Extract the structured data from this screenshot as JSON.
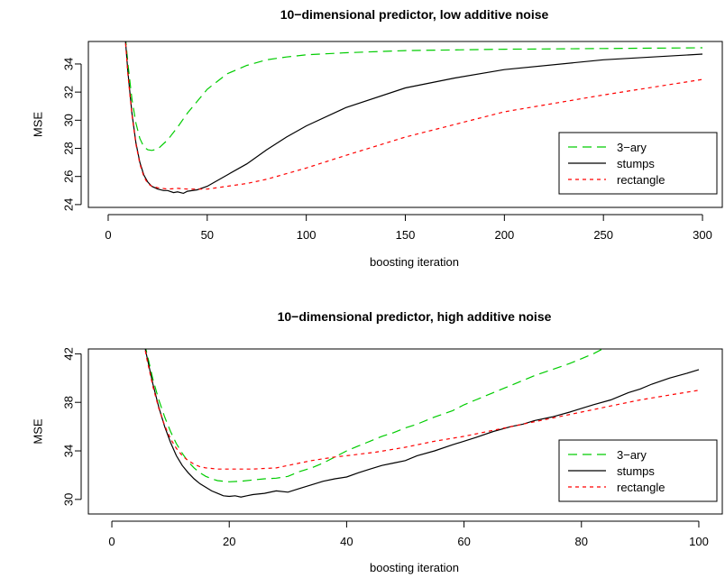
{
  "chart_data": [
    {
      "type": "line",
      "title": "10−dimensional predictor, low additive noise",
      "xlabel": "boosting iteration",
      "ylabel": "MSE",
      "xlim": [
        -10,
        310
      ],
      "ylim": [
        23.8,
        35.6
      ],
      "xticks": [
        0,
        50,
        100,
        150,
        200,
        250,
        300
      ],
      "yticks": [
        24,
        26,
        28,
        30,
        32,
        34
      ],
      "grid": false,
      "legend_position": "right",
      "series": [
        {
          "name": "3−ary",
          "color": "#00cc00",
          "dash": "10,6",
          "x": [
            8,
            10,
            12,
            14,
            16,
            18,
            20,
            22,
            25,
            30,
            35,
            40,
            50,
            60,
            70,
            80,
            90,
            100,
            120,
            150,
            200,
            250,
            300
          ],
          "y": [
            37,
            34.0,
            31.5,
            29.8,
            28.7,
            28.1,
            27.9,
            27.85,
            27.95,
            28.6,
            29.5,
            30.5,
            32.2,
            33.3,
            33.9,
            34.3,
            34.5,
            34.65,
            34.8,
            34.95,
            35.05,
            35.1,
            35.15
          ]
        },
        {
          "name": "stumps",
          "color": "#000000",
          "dash": "",
          "x": [
            8,
            10,
            12,
            14,
            16,
            18,
            20,
            22,
            25,
            28,
            30,
            33,
            35,
            38,
            40,
            45,
            50,
            60,
            70,
            80,
            90,
            100,
            120,
            150,
            175,
            200,
            250,
            300
          ],
          "y": [
            37,
            33.4,
            30.5,
            28.4,
            27.0,
            26.1,
            25.6,
            25.3,
            25.1,
            25.0,
            25.0,
            24.85,
            24.9,
            24.8,
            24.95,
            25.05,
            25.3,
            26.1,
            26.9,
            27.9,
            28.8,
            29.6,
            30.9,
            32.3,
            33.0,
            33.6,
            34.3,
            34.7
          ]
        },
        {
          "name": "rectangle",
          "color": "#ff0000",
          "dash": "4,4",
          "x": [
            8,
            10,
            12,
            14,
            16,
            18,
            20,
            22,
            25,
            30,
            35,
            40,
            50,
            60,
            70,
            80,
            90,
            100,
            120,
            150,
            200,
            250,
            300
          ],
          "y": [
            37,
            33.2,
            30.4,
            28.3,
            26.9,
            26.0,
            25.5,
            25.3,
            25.2,
            25.1,
            25.15,
            25.1,
            25.1,
            25.3,
            25.5,
            25.8,
            26.2,
            26.6,
            27.5,
            28.8,
            30.6,
            31.8,
            32.9
          ]
        }
      ]
    },
    {
      "type": "line",
      "title": "10−dimensional predictor, high additive noise",
      "xlabel": "boosting iteration",
      "ylabel": "MSE",
      "xlim": [
        -4,
        104
      ],
      "ylim": [
        28.8,
        42.4
      ],
      "xticks": [
        0,
        20,
        40,
        60,
        80,
        100
      ],
      "yticks": [
        30,
        34,
        38,
        42
      ],
      "grid": false,
      "legend_position": "right",
      "series": [
        {
          "name": "3−ary",
          "color": "#00cc00",
          "dash": "10,6",
          "x": [
            5,
            6,
            7,
            8,
            9,
            10,
            11,
            12,
            13,
            14,
            15,
            16,
            17,
            18,
            19,
            20,
            22,
            24,
            26,
            28,
            30,
            32,
            34,
            36,
            38,
            40,
            42,
            44,
            46,
            48,
            50,
            52,
            55,
            58,
            60,
            62,
            65,
            68,
            70,
            72,
            75,
            78,
            80,
            82,
            84
          ],
          "y": [
            44,
            42.0,
            39.9,
            38.2,
            36.8,
            35.6,
            34.6,
            33.8,
            33.1,
            32.6,
            32.2,
            31.9,
            31.7,
            31.55,
            31.5,
            31.45,
            31.5,
            31.6,
            31.7,
            31.75,
            31.9,
            32.3,
            32.6,
            33.0,
            33.5,
            34.0,
            34.4,
            34.8,
            35.2,
            35.5,
            35.9,
            36.2,
            36.8,
            37.3,
            37.8,
            38.2,
            38.8,
            39.4,
            39.8,
            40.2,
            40.7,
            41.2,
            41.6,
            42.0,
            42.5
          ]
        },
        {
          "name": "stumps",
          "color": "#000000",
          "dash": "",
          "x": [
            5,
            6,
            7,
            8,
            9,
            10,
            11,
            12,
            13,
            14,
            15,
            16,
            17,
            18,
            19,
            20,
            21,
            22,
            23,
            24,
            26,
            28,
            30,
            32,
            34,
            36,
            38,
            40,
            42,
            44,
            46,
            48,
            50,
            52,
            55,
            58,
            60,
            62,
            65,
            68,
            70,
            72,
            75,
            78,
            80,
            82,
            85,
            88,
            90,
            92,
            95,
            98,
            100
          ],
          "y": [
            44,
            41.7,
            39.5,
            37.6,
            36.0,
            34.7,
            33.6,
            32.8,
            32.2,
            31.7,
            31.3,
            31.0,
            30.7,
            30.5,
            30.3,
            30.25,
            30.3,
            30.2,
            30.3,
            30.4,
            30.5,
            30.7,
            30.6,
            30.9,
            31.2,
            31.5,
            31.7,
            31.85,
            32.2,
            32.5,
            32.8,
            33.0,
            33.2,
            33.6,
            34.0,
            34.5,
            34.8,
            35.1,
            35.6,
            36.0,
            36.2,
            36.5,
            36.8,
            37.2,
            37.5,
            37.8,
            38.2,
            38.8,
            39.1,
            39.5,
            40.0,
            40.4,
            40.7
          ]
        },
        {
          "name": "rectangle",
          "color": "#ff0000",
          "dash": "4,4",
          "x": [
            5,
            6,
            7,
            8,
            9,
            10,
            11,
            12,
            13,
            14,
            15,
            16,
            17,
            18,
            19,
            20,
            22,
            24,
            26,
            28,
            30,
            32,
            34,
            36,
            38,
            40,
            45,
            50,
            55,
            60,
            65,
            70,
            75,
            80,
            85,
            90,
            95,
            100
          ],
          "y": [
            44,
            41.5,
            39.3,
            37.5,
            36.1,
            35.0,
            34.2,
            33.6,
            33.2,
            32.9,
            32.7,
            32.6,
            32.55,
            32.5,
            32.5,
            32.5,
            32.5,
            32.5,
            32.55,
            32.6,
            32.8,
            33.0,
            33.2,
            33.35,
            33.5,
            33.6,
            33.9,
            34.3,
            34.8,
            35.2,
            35.7,
            36.2,
            36.7,
            37.2,
            37.7,
            38.2,
            38.6,
            39.0
          ]
        }
      ]
    }
  ]
}
